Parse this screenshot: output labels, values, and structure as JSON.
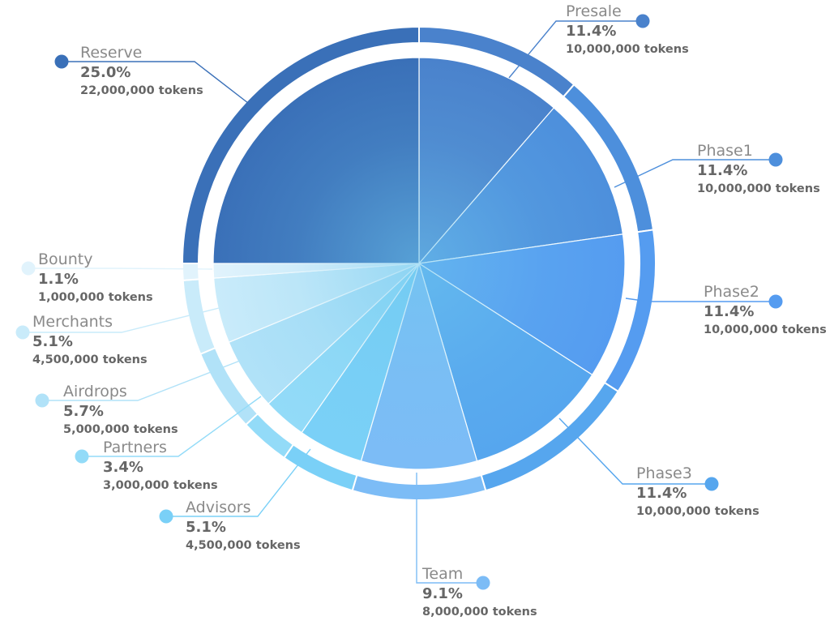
{
  "chart_data": {
    "type": "pie",
    "slices": [
      {
        "label": "Presale",
        "percent_text": "11.4%",
        "tokens_text": "10,000,000 tokens",
        "value": 10000000,
        "color": "#4a82cc"
      },
      {
        "label": "Phase1",
        "percent_text": "11.4%",
        "tokens_text": "10,000,000 tokens",
        "value": 10000000,
        "color": "#4d8fdc"
      },
      {
        "label": "Phase2",
        "percent_text": "11.4%",
        "tokens_text": "10,000,000 tokens",
        "value": 10000000,
        "color": "#559cf0"
      },
      {
        "label": "Phase3",
        "percent_text": "11.4%",
        "tokens_text": "10,000,000 tokens",
        "value": 10000000,
        "color": "#56a6ee"
      },
      {
        "label": "Team",
        "percent_text": "9.1%",
        "tokens_text": "8,000,000 tokens",
        "value": 8000000,
        "color": "#7cbcf6"
      },
      {
        "label": "Advisors",
        "percent_text": "5.1%",
        "tokens_text": "4,500,000 tokens",
        "value": 4500000,
        "color": "#7ad0f7"
      },
      {
        "label": "Partners",
        "percent_text": "3.4%",
        "tokens_text": "3,000,000 tokens",
        "value": 3000000,
        "color": "#93dbf8"
      },
      {
        "label": "Airdrops",
        "percent_text": "5.7%",
        "tokens_text": "5,000,000 tokens",
        "value": 5000000,
        "color": "#b1e2f8"
      },
      {
        "label": "Merchants",
        "percent_text": "5.1%",
        "tokens_text": "4,500,000 tokens",
        "value": 4500000,
        "color": "#c9ebfa"
      },
      {
        "label": "Bounty",
        "percent_text": "1.1%",
        "tokens_text": "1,000,000 tokens",
        "value": 1000000,
        "color": "#e1f3fc"
      },
      {
        "label": "Reserve",
        "percent_text": "25.0%",
        "tokens_text": "22,000,000 tokens",
        "value": 22000000,
        "color": "#3a70b8"
      }
    ]
  }
}
